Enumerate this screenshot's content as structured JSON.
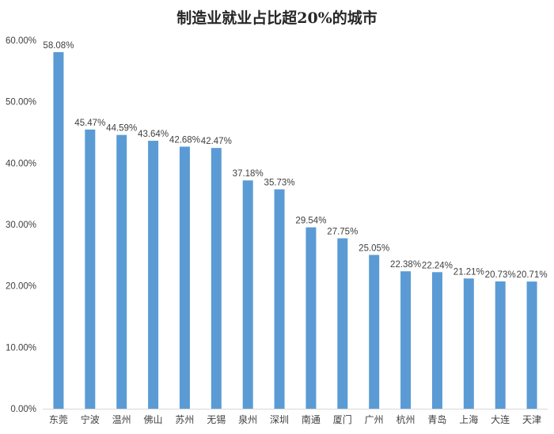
{
  "chart_data": {
    "type": "bar",
    "title": "制造业就业占比超20%的城市",
    "xlabel": "",
    "ylabel": "",
    "categories": [
      "东莞",
      "宁波",
      "温州",
      "佛山",
      "苏州",
      "无锡",
      "泉州",
      "深圳",
      "南通",
      "厦门",
      "广州",
      "杭州",
      "青岛",
      "上海",
      "大连",
      "天津"
    ],
    "values": [
      58.08,
      45.47,
      44.59,
      43.64,
      42.68,
      42.47,
      37.18,
      35.73,
      29.54,
      27.75,
      25.05,
      22.38,
      22.24,
      21.21,
      20.73,
      20.71
    ],
    "data_labels": [
      "58.08%",
      "45.47%",
      "44.59%",
      "43.64%",
      "42.68%",
      "42.47%",
      "37.18%",
      "35.73%",
      "29.54%",
      "27.75%",
      "25.05%",
      "22.38%",
      "22.24%",
      "21.21%",
      "20.73%",
      "20.71%"
    ],
    "y_ticks": [
      0,
      10,
      20,
      30,
      40,
      50,
      60
    ],
    "y_tick_labels": [
      "0.00%",
      "10.00%",
      "20.00%",
      "30.00%",
      "40.00%",
      "50.00%",
      "60.00%"
    ],
    "ylim": [
      0,
      60
    ],
    "grid": false,
    "legend": "none",
    "colors": {
      "bar": "#5b9bd5",
      "axis": "#d9d9d9",
      "text": "#404040"
    }
  }
}
